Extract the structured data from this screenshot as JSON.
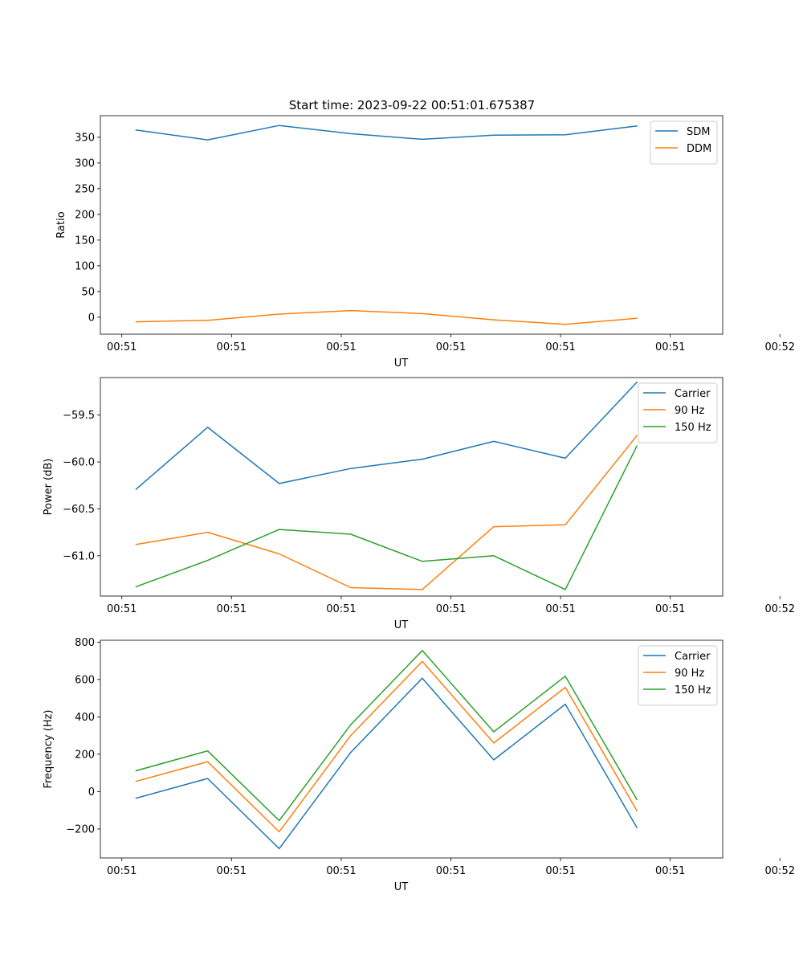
{
  "figure": {
    "title": "Start time: 2023-09-22 00:51:01.675387"
  },
  "chart_data": [
    {
      "type": "line",
      "xlabel": "UT",
      "ylabel": "Ratio",
      "x": [
        1,
        2,
        3,
        4,
        5,
        6,
        7,
        8
      ],
      "xlim": [
        0.5,
        9.2
      ],
      "ylim": [
        -33,
        392
      ],
      "xticks": [
        {
          "value": 0.8,
          "label": "00:51"
        },
        {
          "value": 2.333,
          "label": "00:51"
        },
        {
          "value": 3.867,
          "label": "00:51"
        },
        {
          "value": 5.4,
          "label": "00:51"
        },
        {
          "value": 6.933,
          "label": "00:51"
        },
        {
          "value": 8.467,
          "label": "00:51"
        },
        {
          "value": 10.0,
          "label": "00:52"
        }
      ],
      "yticks": [
        {
          "value": 0,
          "label": "0"
        },
        {
          "value": 50,
          "label": "50"
        },
        {
          "value": 100,
          "label": "100"
        },
        {
          "value": 150,
          "label": "150"
        },
        {
          "value": 200,
          "label": "200"
        },
        {
          "value": 250,
          "label": "250"
        },
        {
          "value": 300,
          "label": "300"
        },
        {
          "value": 350,
          "label": "350"
        }
      ],
      "legend_position": "top-right",
      "series": [
        {
          "name": "SDM",
          "color": "#1f77b4",
          "values": [
            364,
            345,
            373,
            357,
            346,
            354,
            355,
            372
          ]
        },
        {
          "name": "DDM",
          "color": "#ff7f0e",
          "values": [
            -9,
            -6,
            6,
            13,
            7,
            -5,
            -14,
            -2
          ]
        }
      ]
    },
    {
      "type": "line",
      "xlabel": "UT",
      "ylabel": "Power (dB)",
      "x": [
        1,
        2,
        3,
        4,
        5,
        6,
        7,
        8
      ],
      "xlim": [
        0.5,
        9.2
      ],
      "ylim": [
        -61.43,
        -59.1
      ],
      "xticks": [
        {
          "value": 0.8,
          "label": "00:51"
        },
        {
          "value": 2.333,
          "label": "00:51"
        },
        {
          "value": 3.867,
          "label": "00:51"
        },
        {
          "value": 5.4,
          "label": "00:51"
        },
        {
          "value": 6.933,
          "label": "00:51"
        },
        {
          "value": 8.467,
          "label": "00:51"
        },
        {
          "value": 10.0,
          "label": "00:52"
        }
      ],
      "yticks": [
        {
          "value": -61.0,
          "label": "−61.0"
        },
        {
          "value": -60.5,
          "label": "−60.5"
        },
        {
          "value": -60.0,
          "label": "−60.0"
        },
        {
          "value": -59.5,
          "label": "−59.5"
        }
      ],
      "legend_position": "top-right",
      "series": [
        {
          "name": "Carrier",
          "color": "#1f77b4",
          "values": [
            -60.29,
            -59.63,
            -60.23,
            -60.07,
            -59.97,
            -59.78,
            -59.96,
            -59.15
          ]
        },
        {
          "name": "90 Hz",
          "color": "#ff7f0e",
          "values": [
            -60.88,
            -60.75,
            -60.98,
            -61.34,
            -61.36,
            -60.69,
            -60.67,
            -59.72
          ]
        },
        {
          "name": "150 Hz",
          "color": "#2ca02c",
          "values": [
            -61.33,
            -61.05,
            -60.72,
            -60.77,
            -61.06,
            -61.0,
            -61.36,
            -59.83
          ]
        }
      ]
    },
    {
      "type": "line",
      "xlabel": "UT",
      "ylabel": "Frequency (Hz)",
      "x": [
        1,
        2,
        3,
        4,
        5,
        6,
        7,
        8
      ],
      "xlim": [
        0.5,
        9.2
      ],
      "ylim": [
        -355,
        810
      ],
      "xticks": [
        {
          "value": 0.8,
          "label": "00:51"
        },
        {
          "value": 2.333,
          "label": "00:51"
        },
        {
          "value": 3.867,
          "label": "00:51"
        },
        {
          "value": 5.4,
          "label": "00:51"
        },
        {
          "value": 6.933,
          "label": "00:51"
        },
        {
          "value": 8.467,
          "label": "00:51"
        },
        {
          "value": 10.0,
          "label": "00:52"
        }
      ],
      "yticks": [
        {
          "value": -200,
          "label": "−200"
        },
        {
          "value": 0,
          "label": "0"
        },
        {
          "value": 200,
          "label": "200"
        },
        {
          "value": 400,
          "label": "400"
        },
        {
          "value": 600,
          "label": "600"
        },
        {
          "value": 800,
          "label": "800"
        }
      ],
      "legend_position": "top-right",
      "series": [
        {
          "name": "Carrier",
          "color": "#1f77b4",
          "values": [
            -35,
            70,
            -305,
            210,
            607,
            170,
            468,
            -192
          ]
        },
        {
          "name": "90 Hz",
          "color": "#ff7f0e",
          "values": [
            55,
            160,
            -215,
            300,
            697,
            260,
            558,
            -102
          ]
        },
        {
          "name": "150 Hz",
          "color": "#2ca02c",
          "values": [
            112,
            218,
            -155,
            358,
            755,
            320,
            618,
            -42
          ]
        }
      ]
    }
  ]
}
